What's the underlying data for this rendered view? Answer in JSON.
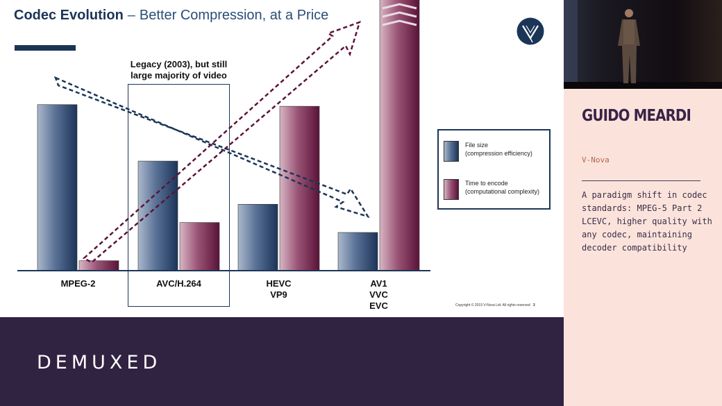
{
  "slide": {
    "title_strong": "Codec Evolution",
    "title_sep": "–",
    "title_rest": "Better Compression, at a Price",
    "legacy_note": "Legacy (2003), but still\nlarge majority of video",
    "copyright": "Copyright © 2019 V-Nova Ltd. All rights reserved",
    "page_number": "3",
    "logo_icon": "v-nova-logo-icon"
  },
  "chart_data": {
    "type": "bar",
    "categories": [
      "MPEG-2",
      "AVC/H.264",
      "HEVC\nVP9",
      "AV1\nVVC\nEVC"
    ],
    "series": [
      {
        "name": "File size\n(compression efficiency)",
        "values": [
          100,
          66,
          40,
          23
        ]
      },
      {
        "name": "Time to encode\n(computational complexity)",
        "values": [
          6,
          29,
          99,
          165
        ]
      }
    ],
    "ylim": [
      0,
      163
    ],
    "grid": false,
    "legend_position": "right",
    "colors": {
      "file_size_dark": "#1c3459",
      "file_size_light": "#aab8cb",
      "encode_dark": "#5a1338",
      "encode_light": "#d8b6c3"
    },
    "annotations": [
      {
        "type": "arrow",
        "style": "dashed",
        "color": "#1b3557",
        "meaning": "file size decreasing"
      },
      {
        "type": "arrow",
        "style": "dashed",
        "color": "#5a1338",
        "meaning": "encode time increasing"
      }
    ]
  },
  "brand": {
    "name": "DEMUXED",
    "colors": {
      "bar": "#302241",
      "panel": "#fbe3dc"
    }
  },
  "speaker": {
    "name": "GUIDO MEARDI",
    "company": "V-Nova",
    "description": "A paradigm shift in codec standards: MPEG-5 Part 2 LCEVC, higher quality with any codec, maintaining decoder compatibility"
  }
}
